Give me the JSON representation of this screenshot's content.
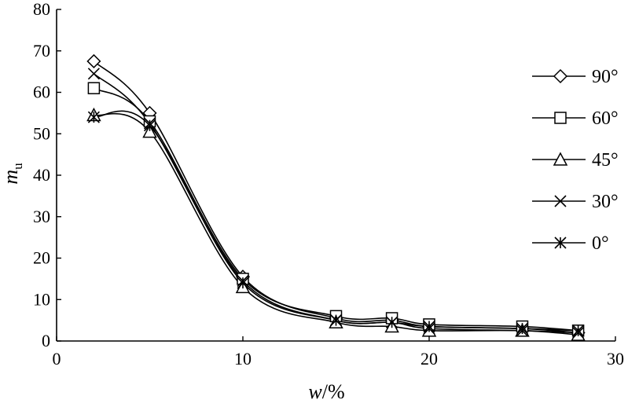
{
  "chart_data": {
    "type": "line",
    "title": "",
    "xlabel": "w/%",
    "ylabel": "m",
    "ylabel_subscript": "u",
    "xlim": [
      0,
      30
    ],
    "ylim": [
      0,
      80
    ],
    "xticks": [
      0,
      10,
      20,
      30
    ],
    "yticks": [
      0,
      10,
      20,
      30,
      40,
      50,
      60,
      70,
      80
    ],
    "grid": false,
    "legend_position": "right",
    "series": [
      {
        "name": "90°",
        "marker": "diamond",
        "x": [
          2,
          5,
          10,
          15,
          18,
          20,
          25,
          28
        ],
        "y": [
          67.5,
          55,
          15.5,
          5.5,
          5,
          3.5,
          3,
          2
        ]
      },
      {
        "name": "60°",
        "marker": "square",
        "x": [
          2,
          5,
          10,
          15,
          18,
          20,
          25,
          28
        ],
        "y": [
          61,
          53,
          15,
          6,
          5.5,
          4,
          3.5,
          2.5
        ]
      },
      {
        "name": "45°",
        "marker": "triangle",
        "x": [
          2,
          5,
          10,
          15,
          18,
          20,
          25,
          28
        ],
        "y": [
          54.5,
          50.5,
          13,
          4.5,
          3.5,
          2.5,
          2.5,
          1.5
        ]
      },
      {
        "name": "30°",
        "marker": "x",
        "x": [
          2,
          5,
          10,
          15,
          18,
          20,
          25,
          28
        ],
        "y": [
          64.5,
          52.5,
          14.5,
          5,
          4.5,
          3,
          2.5,
          2
        ]
      },
      {
        "name": "0°",
        "marker": "asterisk",
        "x": [
          2,
          5,
          10,
          15,
          18,
          20,
          25,
          28
        ],
        "y": [
          54,
          52,
          14,
          5,
          4.5,
          3.5,
          3,
          2.5
        ]
      }
    ]
  }
}
